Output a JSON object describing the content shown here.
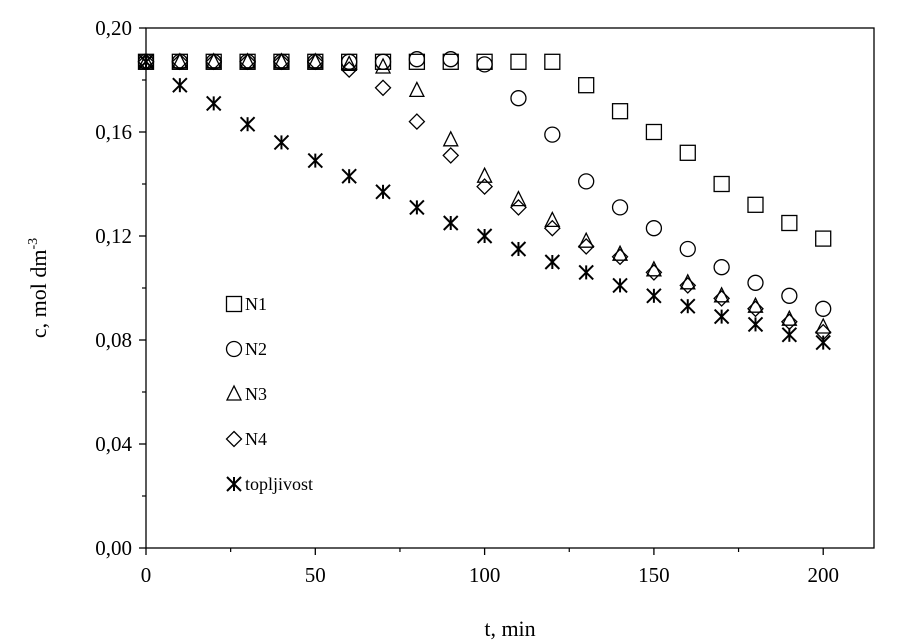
{
  "chart_data": {
    "type": "scatter",
    "xlabel": "t, min",
    "ylabel": "c, mol dm",
    "ylabel_superscript": "-3",
    "xlim": [
      0,
      215
    ],
    "ylim": [
      0,
      0.2
    ],
    "x_ticks": [
      0,
      50,
      100,
      150,
      200
    ],
    "x_tick_labels": [
      "0",
      "50",
      "100",
      "150",
      "200"
    ],
    "y_ticks": [
      0,
      0.04,
      0.08,
      0.12,
      0.16,
      0.2
    ],
    "y_tick_labels": [
      "0,00",
      "0,04",
      "0,08",
      "0,12",
      "0,16",
      "0,20"
    ],
    "grid": false,
    "legend_position": "left",
    "series": [
      {
        "name": "N1",
        "marker": "square",
        "x": [
          0,
          10,
          20,
          30,
          40,
          50,
          60,
          70,
          80,
          90,
          100,
          110,
          120,
          130,
          140,
          150,
          160,
          170,
          180,
          190,
          200
        ],
        "y": [
          0.187,
          0.187,
          0.187,
          0.187,
          0.187,
          0.187,
          0.187,
          0.187,
          0.187,
          0.187,
          0.187,
          0.187,
          0.187,
          0.178,
          0.168,
          0.16,
          0.152,
          0.14,
          0.132,
          0.125,
          0.119
        ]
      },
      {
        "name": "N2",
        "marker": "circle",
        "x": [
          0,
          10,
          20,
          30,
          40,
          50,
          60,
          70,
          80,
          90,
          100,
          110,
          120,
          130,
          140,
          150,
          160,
          170,
          180,
          190,
          200
        ],
        "y": [
          0.187,
          0.187,
          0.187,
          0.187,
          0.187,
          0.187,
          0.187,
          0.187,
          0.188,
          0.188,
          0.186,
          0.173,
          0.159,
          0.141,
          0.131,
          0.123,
          0.115,
          0.108,
          0.102,
          0.097,
          0.092
        ]
      },
      {
        "name": "N3",
        "marker": "triangle",
        "x": [
          0,
          10,
          20,
          30,
          40,
          50,
          60,
          70,
          80,
          90,
          100,
          110,
          120,
          130,
          140,
          150,
          160,
          170,
          180,
          190,
          200
        ],
        "y": [
          0.187,
          0.187,
          0.187,
          0.187,
          0.187,
          0.187,
          0.186,
          0.185,
          0.176,
          0.157,
          0.143,
          0.134,
          0.126,
          0.118,
          0.113,
          0.107,
          0.102,
          0.097,
          0.093,
          0.088,
          0.085
        ]
      },
      {
        "name": "N4",
        "marker": "diamond",
        "x": [
          0,
          10,
          20,
          30,
          40,
          50,
          60,
          70,
          80,
          90,
          100,
          110,
          120,
          130,
          140,
          150,
          160,
          170,
          180,
          190,
          200
        ],
        "y": [
          0.187,
          0.187,
          0.187,
          0.187,
          0.187,
          0.187,
          0.184,
          0.177,
          0.164,
          0.151,
          0.139,
          0.131,
          0.123,
          0.116,
          0.112,
          0.106,
          0.101,
          0.096,
          0.092,
          0.087,
          0.083
        ]
      },
      {
        "name": "topljivost",
        "marker": "asterisk",
        "x": [
          0,
          10,
          20,
          30,
          40,
          50,
          60,
          70,
          80,
          90,
          100,
          110,
          120,
          130,
          140,
          150,
          160,
          170,
          180,
          190,
          200
        ],
        "y": [
          0.187,
          0.178,
          0.171,
          0.163,
          0.156,
          0.149,
          0.143,
          0.137,
          0.131,
          0.125,
          0.12,
          0.115,
          0.11,
          0.106,
          0.101,
          0.097,
          0.093,
          0.089,
          0.086,
          0.082,
          0.079
        ]
      }
    ]
  }
}
